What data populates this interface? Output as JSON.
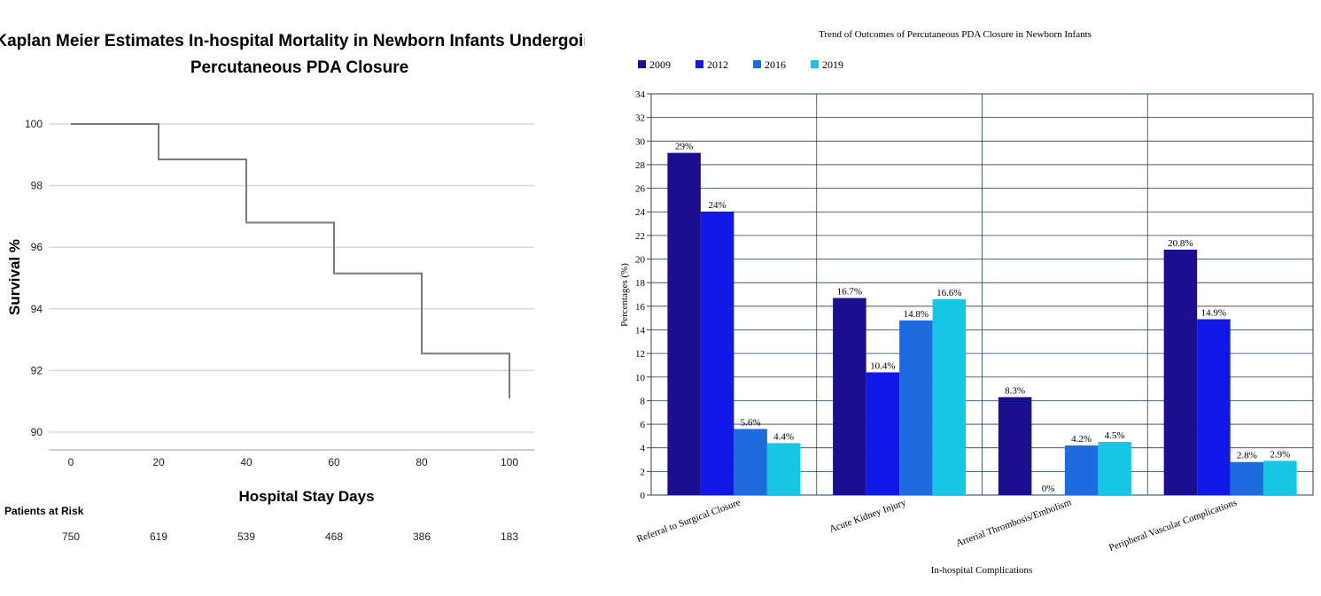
{
  "chart_data": [
    {
      "type": "line",
      "title_lines": [
        "Kaplan Meier Estimates In-hospital Mortality in Newborn Infants Undergoing",
        "Percutaneous PDA Closure"
      ],
      "xlabel": "Hospital Stay Days",
      "ylabel": "Survival %",
      "x_ticks": [
        0,
        20,
        40,
        60,
        80,
        100
      ],
      "y_ticks": [
        90,
        92,
        94,
        96,
        98,
        100
      ],
      "xlim": [
        0,
        100
      ],
      "ylim": [
        89.5,
        100.5
      ],
      "grid": "horizontal",
      "series": [
        {
          "x": [
            0,
            20,
            20,
            40,
            40,
            60,
            60,
            80,
            80,
            100,
            100
          ],
          "y": [
            100,
            100,
            98.85,
            98.85,
            96.8,
            96.8,
            95.15,
            95.15,
            92.55,
            92.55,
            91.1
          ]
        }
      ],
      "risk_table": {
        "title": "Patients at Risk",
        "x": [
          0,
          20,
          40,
          60,
          80,
          100
        ],
        "values": [
          "750",
          "619",
          "539",
          "468",
          "386",
          "183"
        ]
      },
      "color": "#7a7a7a"
    },
    {
      "type": "bar",
      "title": "Trend of Outcomes of Percutaneous PDA Closure in Newborn Infants",
      "xlabel": "In-hospital Complications",
      "ylabel": "Percentages (%)",
      "ylim": [
        0,
        34
      ],
      "y_ticks": [
        0,
        2,
        4,
        6,
        8,
        10,
        12,
        14,
        16,
        18,
        20,
        22,
        24,
        26,
        28,
        30,
        32,
        34
      ],
      "legend": "top-left",
      "categories": [
        "Referral to Surgical Closure",
        "Acute Kidney Injury",
        "Arterial Thrombosis/Embolism",
        "Peripheral Vascular Complications"
      ],
      "series": [
        {
          "name": "2009",
          "color": "#1a0f8f",
          "values": [
            29,
            16.7,
            8.3,
            20.8
          ],
          "labels": [
            "29%",
            "16.7%",
            "8.3%",
            "20.8%"
          ]
        },
        {
          "name": "2012",
          "color": "#0f18e6",
          "values": [
            24,
            10.4,
            0,
            14.9
          ],
          "labels": [
            "24%",
            "10.4%",
            "0%",
            "14.9%"
          ]
        },
        {
          "name": "2016",
          "color": "#1e6be0",
          "values": [
            5.6,
            14.8,
            4.2,
            2.8
          ],
          "labels": [
            "5.6%",
            "14.8%",
            "4.2%",
            "2.8%"
          ]
        },
        {
          "name": "2019",
          "color": "#16c6e4",
          "values": [
            4.4,
            16.6,
            4.5,
            2.9
          ],
          "labels": [
            "4.4%",
            "16.6%",
            "4.5%",
            "2.9%"
          ]
        }
      ],
      "grid_color": "#1f3f6e"
    }
  ]
}
